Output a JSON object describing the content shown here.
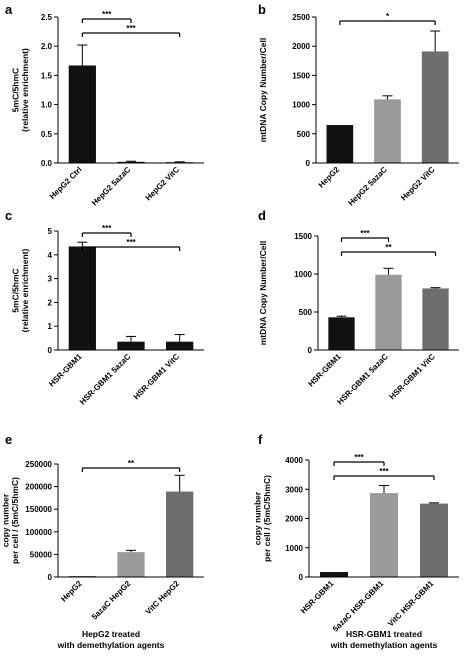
{
  "chart_data": [
    {
      "panel": "a",
      "type": "bar",
      "categories": [
        "HepG2 Ctrl",
        "HepG2 5azaC",
        "HepG2 VitC"
      ],
      "values": [
        1.67,
        0.02,
        0.01
      ],
      "errors": [
        0.35,
        0.01,
        0.01
      ],
      "colors": [
        "#111111",
        "#111111",
        "#111111"
      ],
      "ylabel": "5mC/5hmC\n(relative enrichment)",
      "ylim": [
        0,
        2.5
      ],
      "yticks": [
        0,
        0.5,
        1.0,
        1.5,
        2.0,
        2.5
      ],
      "ytick_labels": [
        "0.0",
        "0.5",
        "1.0",
        "1.5",
        "2.0",
        "2.5"
      ],
      "significance": [
        {
          "from": 0,
          "to": 1,
          "label": "***"
        },
        {
          "from": 0,
          "to": 2,
          "label": "***"
        }
      ],
      "caption": []
    },
    {
      "panel": "b",
      "type": "bar",
      "categories": [
        "HepG2",
        "HepG2 5azaC",
        "HepG2 VitC"
      ],
      "values": [
        650,
        1090,
        1910
      ],
      "errors": [
        0,
        60,
        350
      ],
      "colors": [
        "#111111",
        "#9a9a9a",
        "#6e6e6e"
      ],
      "ylabel": "mtDNA Copy Number/Cell",
      "ylim": [
        0,
        2500
      ],
      "yticks": [
        0,
        500,
        1000,
        1500,
        2000,
        2500
      ],
      "ytick_labels": [
        "0",
        "500",
        "1000",
        "1500",
        "2000",
        "2500"
      ],
      "significance": [
        {
          "from": 0,
          "to": 2,
          "label": "*"
        }
      ],
      "caption": []
    },
    {
      "panel": "c",
      "type": "bar",
      "categories": [
        "HSR-GBM1",
        "HSR-GBM1 5azaC",
        "HSR-GBM1 VitC"
      ],
      "values": [
        4.35,
        0.35,
        0.35
      ],
      "errors": [
        0.18,
        0.22,
        0.3
      ],
      "colors": [
        "#111111",
        "#111111",
        "#111111"
      ],
      "ylabel": "5mC/5hmC\n(relative enrichment)",
      "ylim": [
        0,
        5
      ],
      "yticks": [
        0,
        1,
        2,
        3,
        4,
        5
      ],
      "ytick_labels": [
        "0",
        "1",
        "2",
        "3",
        "4",
        "5"
      ],
      "significance": [
        {
          "from": 0,
          "to": 1,
          "label": "***"
        },
        {
          "from": 0,
          "to": 2,
          "label": "***"
        }
      ],
      "caption": []
    },
    {
      "panel": "d",
      "type": "bar",
      "categories": [
        "HSR-GBM1",
        "HSR-GBM1 5azaC",
        "HSR-GBM1 VitC"
      ],
      "values": [
        430,
        990,
        810
      ],
      "errors": [
        15,
        85,
        10
      ],
      "colors": [
        "#111111",
        "#9a9a9a",
        "#6e6e6e"
      ],
      "ylabel": "mtDNA Copy Number/Cell",
      "ylim": [
        0,
        1500
      ],
      "yticks": [
        0,
        500,
        1000,
        1500
      ],
      "ytick_labels": [
        "0",
        "500",
        "1000",
        "1500"
      ],
      "significance": [
        {
          "from": 0,
          "to": 1,
          "label": "***"
        },
        {
          "from": 0,
          "to": 2,
          "label": "**"
        }
      ],
      "caption": []
    },
    {
      "panel": "e",
      "type": "bar",
      "categories": [
        "HepG2",
        "5azaC HepG2",
        "VitC HepG2"
      ],
      "values": [
        400,
        55000,
        189000
      ],
      "errors": [
        0,
        4000,
        36000
      ],
      "colors": [
        "#111111",
        "#9a9a9a",
        "#6e6e6e"
      ],
      "ylabel": "copy number\nper cell / (5mC/5hmC)",
      "ylim": [
        0,
        250000
      ],
      "yticks": [
        0,
        50000,
        100000,
        150000,
        200000,
        250000
      ],
      "ytick_labels": [
        "0",
        "50000",
        "100000",
        "150000",
        "200000",
        "250000"
      ],
      "significance": [
        {
          "from": 0,
          "to": 2,
          "label": "**"
        }
      ],
      "caption": [
        "HepG2 treated",
        "with demethylation agents"
      ]
    },
    {
      "panel": "f",
      "type": "bar",
      "categories": [
        "HSR-GBM1",
        "5azaC HSR-GBM1",
        "VitC HSR-GBM1"
      ],
      "values": [
        170,
        2870,
        2510
      ],
      "errors": [
        0,
        260,
        25
      ],
      "colors": [
        "#111111",
        "#9a9a9a",
        "#6e6e6e"
      ],
      "ylabel": "copy number\nper cell / (5mC/5hmC)",
      "ylim": [
        0,
        4000
      ],
      "yticks": [
        0,
        1000,
        2000,
        3000,
        4000
      ],
      "ytick_labels": [
        "0",
        "1000",
        "2000",
        "3000",
        "4000"
      ],
      "significance": [
        {
          "from": 0,
          "to": 1,
          "label": "***"
        },
        {
          "from": 0,
          "to": 2,
          "label": "***"
        }
      ],
      "caption": [
        "HSR-GBM1 treated",
        "with demethylation agents"
      ]
    }
  ]
}
